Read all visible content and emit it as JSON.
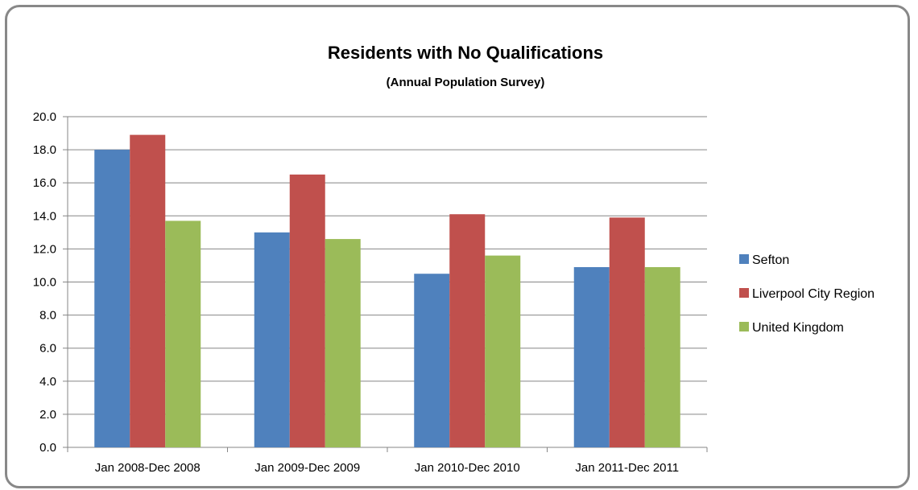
{
  "chart_data": {
    "type": "bar",
    "title": "Residents with No Qualifications",
    "subtitle": "(Annual Population Survey)",
    "categories": [
      "Jan 2008-Dec 2008",
      "Jan 2009-Dec 2009",
      "Jan 2010-Dec 2010",
      "Jan 2011-Dec 2011"
    ],
    "series": [
      {
        "name": "Sefton",
        "values": [
          18.0,
          13.0,
          10.5,
          10.9
        ],
        "color": "#4F81BD"
      },
      {
        "name": "Liverpool City Region",
        "values": [
          18.9,
          16.5,
          14.1,
          13.9
        ],
        "color": "#C0504D"
      },
      {
        "name": "United Kingdom",
        "values": [
          13.7,
          12.6,
          11.6,
          10.9
        ],
        "color": "#9BBB59"
      }
    ],
    "ylim": [
      0,
      20
    ],
    "ytick_step": 2,
    "ytick_labels": [
      "0.0",
      "2.0",
      "4.0",
      "6.0",
      "8.0",
      "10.0",
      "12.0",
      "14.0",
      "16.0",
      "18.0",
      "20.0"
    ],
    "grid": true,
    "legend_position": "right"
  }
}
